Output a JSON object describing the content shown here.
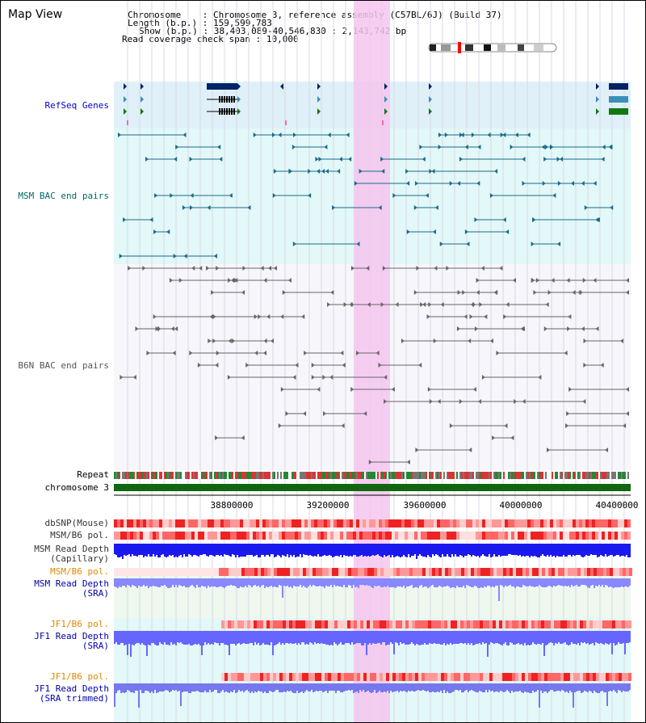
{
  "view_title": "Map View",
  "info": {
    "chromosome_key": "Chromosome",
    "chromosome_value": "Chromosome 3, reference assembly (C57BL/6J) (Build 37)",
    "length_key": "Length (b.p.)",
    "length_value": "159,599,783",
    "show_key": "Show (b.p.)",
    "show_value": "38,403,089-40,546,830 : 2,143,742 bp",
    "coverage_key": "Read coverage check span",
    "coverage_value": "10,000"
  },
  "tracks": {
    "refseq": "RefSeq Genes",
    "msm_bac": "MSM BAC end pairs",
    "b6n_bac": "B6N BAC end pairs",
    "repeat": "Repeat",
    "chromosome": "chromosome 3",
    "dbsnp": "dbSNP(Mouse)",
    "msm_b6_pol": "MSM/B6 pol.",
    "msm_depth_cap_1": "MSM Read Depth",
    "msm_depth_cap_2": "(Capillary)",
    "msm_b6_pol_sra": "MSM/B6 pol.",
    "msm_depth_sra_1": "MSM Read Depth",
    "msm_depth_sra_2": "(SRA)",
    "jf1_b6_pol_1": "JF1/B6 pol.",
    "jf1_depth_sra_1": "JF1 Read Depth",
    "jf1_depth_sra_2": "(SRA)",
    "jf1_b6_pol_2": "JF1/B6 pol.",
    "jf1_depth_trim_1": "JF1 Read Depth",
    "jf1_depth_trim_2": "(SRA trimmed)"
  },
  "ruler": {
    "ticks": [
      "38800000",
      "39200000",
      "39600000",
      "40000000",
      "40400000"
    ]
  },
  "colors": {
    "refseq_label": "#0000cc",
    "msm_label": "#006666",
    "b6n_label": "#555555",
    "pol_label": "#e08800",
    "depth_label": "#0000aa",
    "highlight": "#f5c6ee",
    "refseq_bg": "#dff0f8",
    "msm_bg": "#e3f8f8",
    "depth_bg": "#eef8ee"
  }
}
